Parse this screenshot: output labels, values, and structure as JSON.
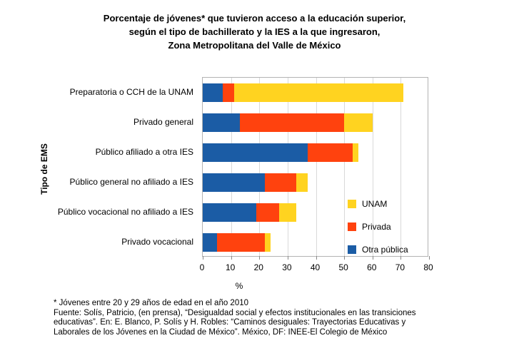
{
  "title": "Porcentaje de jóvenes* que tuvieron acceso a la educación superior,\nsegún el tipo de bachillerato y la IES a la que ingresaron,\nZona Metropolitana del Valle de México",
  "footnote": "* Jóvenes entre 20 y 29 años de edad en el año 2010\nFuente: Solís, Patricio, (en prensa), “Desigualdad social y efectos institucionales en las transiciones\neducativas”. En: E. Blanco, P. Solís y H. Robles: “Caminos desiguales: Trayectorias Educativas y\nLaborales de los Jóvenes en la Ciudad de México”. México, DF: INEE-El Colegio de México",
  "chart_data": {
    "type": "bar",
    "orientation": "horizontal",
    "stacked": true,
    "title": "Porcentaje de jóvenes* que tuvieron acceso a la educación superior, según el tipo de bachillerato y la IES a la que ingresaron, Zona Metropolitana del Valle de México",
    "ylabel": "Tipo de EMS",
    "xlabel": "%",
    "xlim": [
      0,
      80
    ],
    "xticks": [
      0,
      10,
      20,
      30,
      40,
      50,
      60,
      70,
      80
    ],
    "grid": true,
    "legend_position": "inside-right",
    "legend": [
      "UNAM",
      "Privada",
      "Otra pública"
    ],
    "categories": [
      "Preparatoria o CCH de la UNAM",
      "Privado general",
      "Público afiliado a otra IES",
      "Público general no afiliado a IES",
      "Público vocacional no afiliado a IES",
      "Privado vocacional"
    ],
    "series": [
      {
        "name": "Otra pública",
        "color": "#1b5ca5",
        "values": [
          7,
          13,
          37,
          22,
          19,
          5
        ]
      },
      {
        "name": "Privada",
        "color": "#ff420e",
        "values": [
          4,
          37,
          16,
          11,
          8,
          17
        ]
      },
      {
        "name": "UNAM",
        "color": "#ffd320",
        "values": [
          60,
          10,
          2,
          4,
          6,
          2
        ]
      }
    ]
  }
}
